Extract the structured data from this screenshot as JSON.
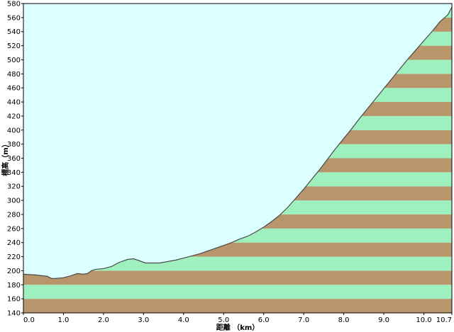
{
  "chart_data": {
    "type": "area",
    "xlabel": "距離 （km）",
    "ylabel": "標高（m）",
    "xlim": [
      0,
      10.7
    ],
    "ylim": [
      140,
      580
    ],
    "xticks": [
      0,
      1,
      2,
      3,
      4,
      5,
      6,
      7,
      8,
      9,
      10
    ],
    "xtick_labels": [
      "0.0",
      "1.0",
      "2.0",
      "3.0",
      "4.0",
      "5.0",
      "6.0",
      "7.0",
      "8.0",
      "9.0",
      "10.0"
    ],
    "xtick_end_label": "10.7",
    "yticks": [
      140,
      160,
      180,
      200,
      220,
      240,
      260,
      280,
      300,
      320,
      340,
      360,
      380,
      400,
      420,
      440,
      460,
      480,
      500,
      520,
      540,
      560,
      580
    ],
    "band_interval": 20,
    "series": [
      {
        "x": [
          0,
          0.3,
          0.6,
          0.7,
          0.8,
          1.0,
          1.2,
          1.35,
          1.5,
          1.6,
          1.7,
          1.8,
          2.0,
          2.2,
          2.4,
          2.6,
          2.75,
          2.9,
          3.05,
          3.2,
          3.4,
          3.6,
          3.8,
          4.0,
          4.2,
          4.4,
          4.6,
          4.8,
          5.0,
          5.2,
          5.4,
          5.6,
          5.8,
          6.0,
          6.2,
          6.4,
          6.6,
          6.8,
          7.0,
          7.2,
          7.4,
          7.6,
          7.8,
          8.0,
          8.2,
          8.4,
          8.6,
          8.8,
          9.0,
          9.2,
          9.4,
          9.6,
          9.8,
          10.0,
          10.2,
          10.4,
          10.6,
          10.7
        ],
        "y": [
          195,
          194,
          192,
          189,
          189,
          190,
          193,
          196,
          195,
          196,
          200,
          202,
          203,
          206,
          212,
          216,
          217,
          214,
          211,
          211,
          211,
          213,
          215,
          218,
          221,
          224,
          228,
          232,
          236,
          240,
          245,
          249,
          255,
          262,
          270,
          279,
          290,
          303,
          316,
          330,
          344,
          359,
          374,
          388,
          402,
          417,
          431,
          445,
          459,
          473,
          487,
          501,
          514,
          527,
          540,
          554,
          564,
          575
        ]
      }
    ],
    "colors": {
      "sky": "#dcffff",
      "band_green": "#9ef0bf",
      "band_brown": "#b8956a",
      "profile_line": "#4a4a4a",
      "axis": "#000000"
    },
    "grid": false
  }
}
